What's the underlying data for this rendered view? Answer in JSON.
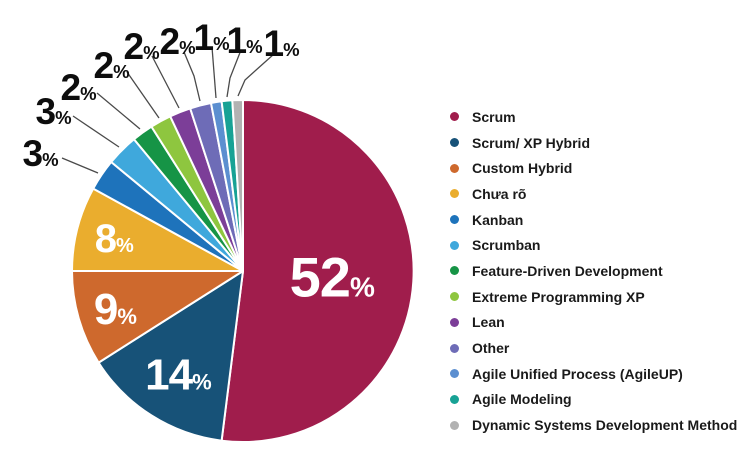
{
  "chart_data": {
    "type": "pie",
    "title": "",
    "unit": "%",
    "direction": "clockwise",
    "start_angle_deg": 0,
    "legend_position": "right",
    "background_color": "#ffffff",
    "slices": [
      {
        "label": "Scrum",
        "value": 52,
        "color": "#A01D4C"
      },
      {
        "label": "Scrum/ XP Hybrid",
        "value": 14,
        "color": "#175278"
      },
      {
        "label": "Custom Hybrid",
        "value": 9,
        "color": "#CE692D"
      },
      {
        "label": "Chưa rõ",
        "value": 8,
        "color": "#EAAD2E"
      },
      {
        "label": "Kanban",
        "value": 3,
        "color": "#1E73BB"
      },
      {
        "label": "Scrumban",
        "value": 3,
        "color": "#3FA8DC"
      },
      {
        "label": "Feature-Driven Development",
        "value": 2,
        "color": "#169446"
      },
      {
        "label": "Extreme Programming XP",
        "value": 2,
        "color": "#8EC63F"
      },
      {
        "label": "Lean",
        "value": 2,
        "color": "#7C3E98"
      },
      {
        "label": "Other",
        "value": 2,
        "color": "#6E6CB7"
      },
      {
        "label": "Agile Unified Process (AgileUP)",
        "value": 1,
        "color": "#5C8FD0"
      },
      {
        "label": "Agile Modeling",
        "value": 1,
        "color": "#18A295"
      },
      {
        "label": "Dynamic Systems Development Method",
        "value": 1,
        "color": "#B2B2B2"
      }
    ]
  }
}
